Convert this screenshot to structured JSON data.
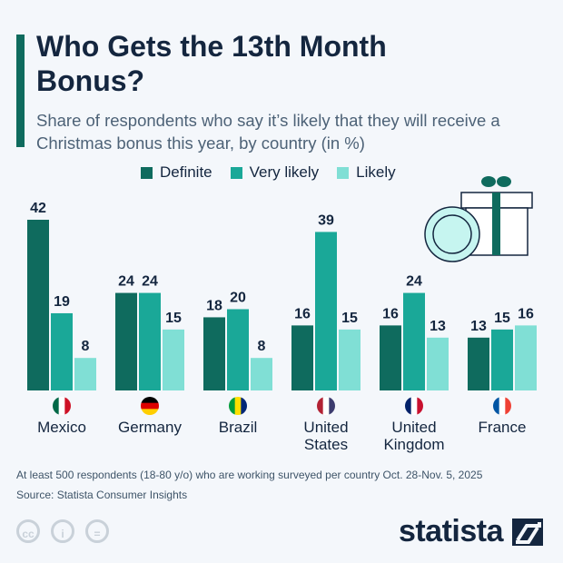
{
  "title": "Who Gets the 13th Month Bonus?",
  "subtitle": "Share of respondents who say it’s likely that they will receive a Christmas bonus this year, by country (in %)",
  "chart_data": {
    "type": "bar",
    "categories": [
      "Mexico",
      "Germany",
      "Brazil",
      "United States",
      "United Kingdom",
      "France"
    ],
    "series": [
      {
        "name": "Definite",
        "color": "#0f6b5e",
        "values": [
          42,
          24,
          18,
          16,
          16,
          13
        ]
      },
      {
        "name": "Very likely",
        "color": "#1aa898",
        "values": [
          19,
          24,
          20,
          39,
          24,
          15
        ]
      },
      {
        "name": "Likely",
        "color": "#80dfd5",
        "values": [
          8,
          15,
          8,
          15,
          13,
          16
        ]
      }
    ],
    "ylim": [
      0,
      42
    ],
    "grid": false,
    "legend": "top"
  },
  "flags": [
    "mexico-flag",
    "germany-flag",
    "brazil-flag",
    "usa-flag",
    "uk-flag",
    "france-flag"
  ],
  "footer": {
    "note": "At least 500 respondents (18-80 y/o) who are working surveyed per country Oct. 28-Nov. 5, 2025",
    "source": "Source: Statista Consumer Insights"
  },
  "brand": "statista",
  "license_icons": [
    "cc",
    "by",
    "nd"
  ]
}
